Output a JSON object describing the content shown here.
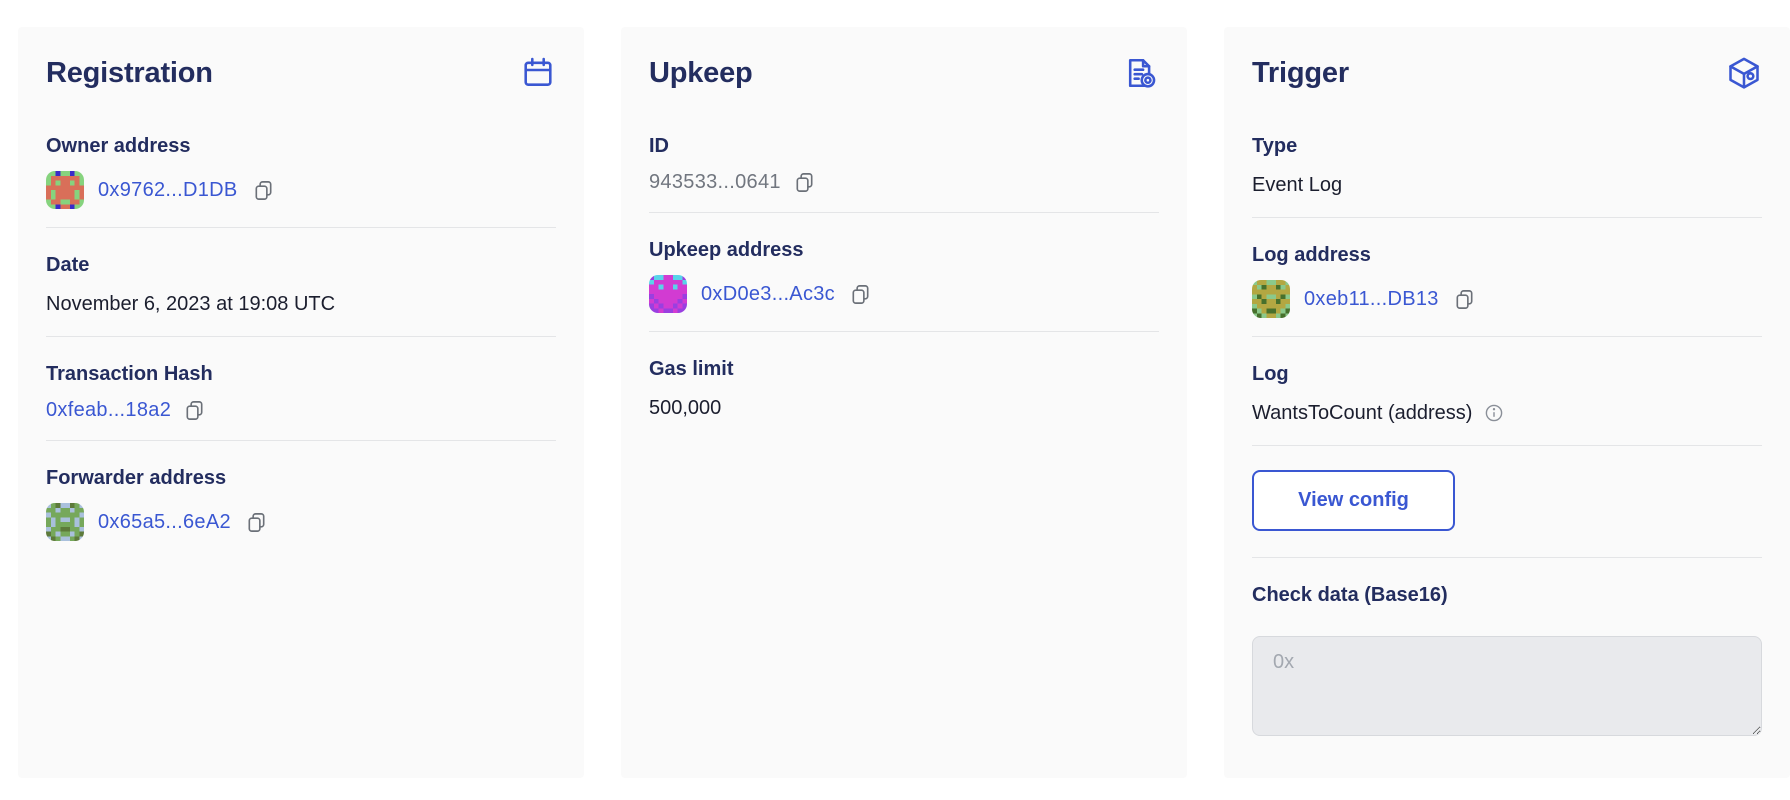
{
  "colors": {
    "page-bg": "#ffffff",
    "card-bg": "#fafafa",
    "heading": "#232d5f",
    "text": "#1b1e2e",
    "muted": "#71767f",
    "link": "#3a57d2",
    "divider": "#e4e5e7",
    "placeholder": "#a3a8b0",
    "textarea-bg": "#e9eaed"
  },
  "icons": {
    "registration": "calendar-icon",
    "upkeep": "document-gear-icon",
    "trigger": "cube-icon",
    "copy": "copy-icon",
    "info": "info-icon"
  },
  "cards": [
    {
      "title": "Registration",
      "sections": {
        "owner": {
          "label": "Owner address",
          "address": "0x9762...D1DB",
          "avatar": {
            "palette": {
              "G": "#86d37e",
              "R": "#d96f59",
              "B": "#3a2bc8"
            },
            "grid": [
              "GGBGGBGG",
              "GRRRRRRG",
              "GRGRRGRG",
              "RRRRRRRR",
              "RGRRRRGR",
              "RGRRRRGR",
              "GRRGGRRG",
              "GGBRRBGG"
            ]
          }
        },
        "date": {
          "label": "Date",
          "value": "November 6, 2023 at 19:08 UTC"
        },
        "tx": {
          "label": "Transaction Hash",
          "hash": "0xfeab...18a2"
        },
        "forwarder": {
          "label": "Forwarder address",
          "address": "0x65a5...6eA2",
          "avatar": {
            "palette": {
              "L": "#a9c0dc",
              "G": "#76a85b",
              "O": "#5d7a3a"
            },
            "grid": [
              "LGOLLOGL",
              "GGLGGLGG",
              "LGGGGGGL",
              "GLGLLGLG",
              "GLGGGGLG",
              "LGGOOGGL",
              "OGLGGLGO",
              "LOGLLGOL"
            ]
          }
        }
      }
    },
    {
      "title": "Upkeep",
      "sections": {
        "id": {
          "label": "ID",
          "value": "943533...0641"
        },
        "address": {
          "label": "Upkeep address",
          "address": "0xD0e3...Ac3c",
          "avatar": {
            "palette": {
              "M": "#d23bd2",
              "P": "#9a3fe0",
              "C": "#59d3ea"
            },
            "grid": [
              "PCCMMCCP",
              "CMMMMMMC",
              "MMCMMCMM",
              "MMMMMMMM",
              "PMMMMMMP",
              "MPMMMMPM",
              "PMPMMPMP",
              "PPMPPMPP"
            ]
          }
        },
        "gas": {
          "label": "Gas limit",
          "value": "500,000"
        }
      }
    },
    {
      "title": "Trigger",
      "sections": {
        "type": {
          "label": "Type",
          "value": "Event Log"
        },
        "log_address": {
          "label": "Log address",
          "address": "0xeb11...DB13",
          "avatar": {
            "palette": {
              "O": "#b3a742",
              "G": "#8bc98b",
              "D": "#47702c"
            },
            "grid": [
              "GOOGGOOG",
              "OGDOODGO",
              "OOOOOOOO",
              "GDOGGODG",
              "OODOODOO",
              "GOOOOOOG",
              "DGODDOGD",
              "GDGOOGDG"
            ]
          }
        },
        "log": {
          "label": "Log",
          "value": "WantsToCount (address)"
        },
        "view_config": {
          "button_label": "View config"
        },
        "check_data": {
          "label": "Check data (Base16)",
          "placeholder": "0x",
          "value": ""
        }
      }
    }
  ]
}
